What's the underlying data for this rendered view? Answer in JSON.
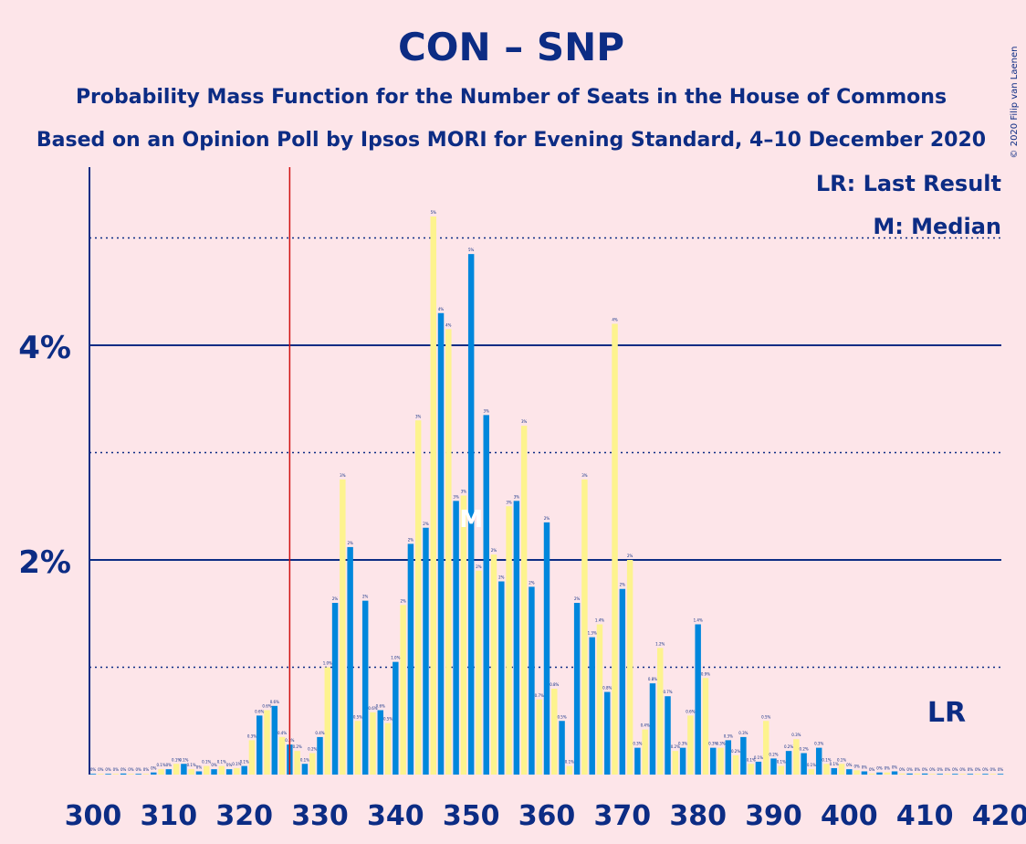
{
  "chart_data": {
    "type": "bar",
    "title": "CON – SNP",
    "subtitle1": "Probability Mass Function for the Number of Seats in the House of Commons",
    "subtitle2": "Based on an Opinion Poll by Ipsos MORI for Evening Standard, 4–10 December 2020",
    "copyright": "© 2020 Filip van Laenen",
    "legend": {
      "lr": "LR: Last Result",
      "median": "M: Median",
      "lr_marker": "LR",
      "median_marker": "M"
    },
    "x_ticks": [
      "300",
      "310",
      "320",
      "330",
      "340",
      "350",
      "360",
      "370",
      "380",
      "390",
      "400",
      "410",
      "420"
    ],
    "y_ticks": [
      "2%",
      "4%"
    ],
    "xlim": [
      300,
      420
    ],
    "ylim": [
      0,
      5.6
    ],
    "solid_gridlines": [
      2,
      4
    ],
    "dotted_gridlines": [
      1,
      3,
      5
    ],
    "last_result_seat": 326,
    "median_seat": 350,
    "colors": {
      "blue": "#0087DC",
      "yellow": "#FDF38E",
      "text": "#0C2C84",
      "lr_line": "#D01010",
      "background": "#FDE5E9"
    },
    "seats": [
      300,
      301,
      302,
      303,
      304,
      305,
      306,
      307,
      308,
      309,
      310,
      311,
      312,
      313,
      314,
      315,
      316,
      317,
      318,
      319,
      320,
      321,
      322,
      323,
      324,
      325,
      326,
      327,
      328,
      329,
      330,
      331,
      332,
      333,
      334,
      335,
      336,
      337,
      338,
      339,
      340,
      341,
      342,
      343,
      344,
      345,
      346,
      347,
      348,
      349,
      350,
      351,
      352,
      353,
      354,
      355,
      356,
      357,
      358,
      359,
      360,
      361,
      362,
      363,
      364,
      365,
      366,
      367,
      368,
      369,
      370,
      371,
      372,
      373,
      374,
      375,
      376,
      377,
      378,
      379,
      380,
      381,
      382,
      383,
      384,
      385,
      386,
      387,
      388,
      389,
      390,
      391,
      392,
      393,
      394,
      395,
      396,
      397,
      398,
      399,
      400,
      401,
      402,
      403,
      404,
      405,
      406,
      407,
      408,
      409,
      410,
      411,
      412,
      413,
      414,
      415,
      416,
      417,
      418,
      419,
      420
    ],
    "values": [
      0,
      0,
      0,
      0,
      0.01,
      0,
      0,
      0,
      0.02,
      0.05,
      0.05,
      0.1,
      0.1,
      0.05,
      0.03,
      0.08,
      0.05,
      0.08,
      0.05,
      0.06,
      0.08,
      0.32,
      0.55,
      0.6,
      0.64,
      0.35,
      0.28,
      0.22,
      0.1,
      0.2,
      0.35,
      1.0,
      1.6,
      2.75,
      2.12,
      0.5,
      1.62,
      0.58,
      0.6,
      0.48,
      1.05,
      1.58,
      2.15,
      3.3,
      2.3,
      5.2,
      4.3,
      4.15,
      2.55,
      2.6,
      4.85,
      1.9,
      3.35,
      2.05,
      1.8,
      2.5,
      2.55,
      3.25,
      1.75,
      0.7,
      2.35,
      0.8,
      0.5,
      0.08,
      1.6,
      2.75,
      1.28,
      1.4,
      0.77,
      4.2,
      1.73,
      2.0,
      0.25,
      0.42,
      0.85,
      1.18,
      0.73,
      0.22,
      0.25,
      0.55,
      1.4,
      0.9,
      0.25,
      0.25,
      0.32,
      0.18,
      0.35,
      0.1,
      0.12,
      0.5,
      0.15,
      0.08,
      0.22,
      0.33,
      0.2,
      0.05,
      0.25,
      0.1,
      0.06,
      0.1,
      0.05,
      0.04,
      0.03,
      0.01,
      0.02,
      0.02,
      0.03,
      0.01,
      0.01,
      0.01,
      0.01,
      0,
      0,
      0,
      0,
      0,
      0,
      0,
      0,
      0,
      0
    ],
    "value_labels": [
      "0%",
      "0%",
      "0%",
      "0%",
      "0%",
      "0%",
      "0%",
      "0%",
      "0%",
      "0.1%",
      "0%",
      "0.1%",
      "0.1%",
      "0.1%",
      "0%",
      "0.1%",
      "0%",
      "0.1%",
      "0%",
      "0.1%",
      "0.1%",
      "0.3%",
      "0.6%",
      "0.6%",
      "0.6%",
      "0.4%",
      "0.3%",
      "0.2%",
      "0.1%",
      "0.2%",
      "0.4%",
      "1.0%",
      "2%",
      "3%",
      "2%",
      "0.5%",
      "2%",
      "0.6%",
      "0.6%",
      "0.5%",
      "1.0%",
      "2%",
      "2%",
      "3%",
      "2%",
      "5%",
      "4%",
      "4%",
      "3%",
      "3%",
      "5%",
      "2%",
      "3%",
      "2%",
      "2%",
      "3%",
      "3%",
      "3%",
      "2%",
      "0.7%",
      "2%",
      "0.8%",
      "0.5%",
      "0.1%",
      "2%",
      "3%",
      "1.3%",
      "1.4%",
      "0.8%",
      "4%",
      "2%",
      "2%",
      "0.3%",
      "0.4%",
      "0.8%",
      "1.2%",
      "0.7%",
      "0.2%",
      "0.3%",
      "0.6%",
      "1.4%",
      "0.9%",
      "0.3%",
      "0.3%",
      "0.3%",
      "0.2%",
      "0.3%",
      "0.1%",
      "0.1%",
      "0.5%",
      "0.2%",
      "0.1%",
      "0.2%",
      "0.3%",
      "0.2%",
      "0.1%",
      "0.3%",
      "0.1%",
      "0.1%",
      "0.1%",
      "0%",
      "0%",
      "0%",
      "0%",
      "0%",
      "0%",
      "0%",
      "0%",
      "0%",
      "0%",
      "0%",
      "0%",
      "0%",
      "0%",
      "0%",
      "0%",
      "0%",
      "0%",
      "0%",
      "0%",
      "0%"
    ]
  }
}
